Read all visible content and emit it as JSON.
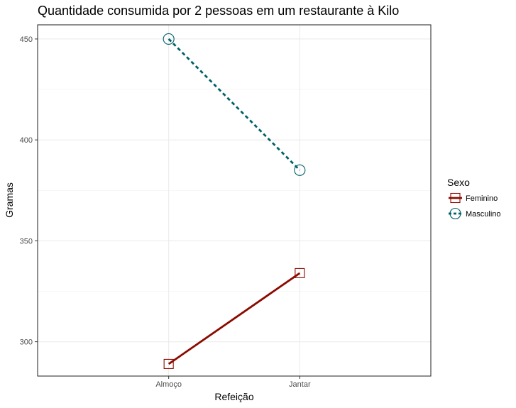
{
  "chart_data": {
    "type": "line",
    "title": "Quantidade consumida por 2 pessoas em um restaurante à Kilo",
    "xlabel": "Refeição",
    "ylabel": "Gramas",
    "categories": [
      "Almoço",
      "Jantar"
    ],
    "ylim": [
      283,
      457
    ],
    "yticks": [
      300,
      350,
      400,
      450
    ],
    "grid": true,
    "legend": {
      "title": "Sexo",
      "position": "right"
    },
    "series": [
      {
        "name": "Feminino",
        "values": [
          289,
          334
        ],
        "color": "#8b0a00",
        "marker": "square",
        "line": "solid"
      },
      {
        "name": "Masculino",
        "values": [
          450,
          385
        ],
        "color": "#006068",
        "marker": "circle",
        "line": "dashed"
      }
    ]
  }
}
